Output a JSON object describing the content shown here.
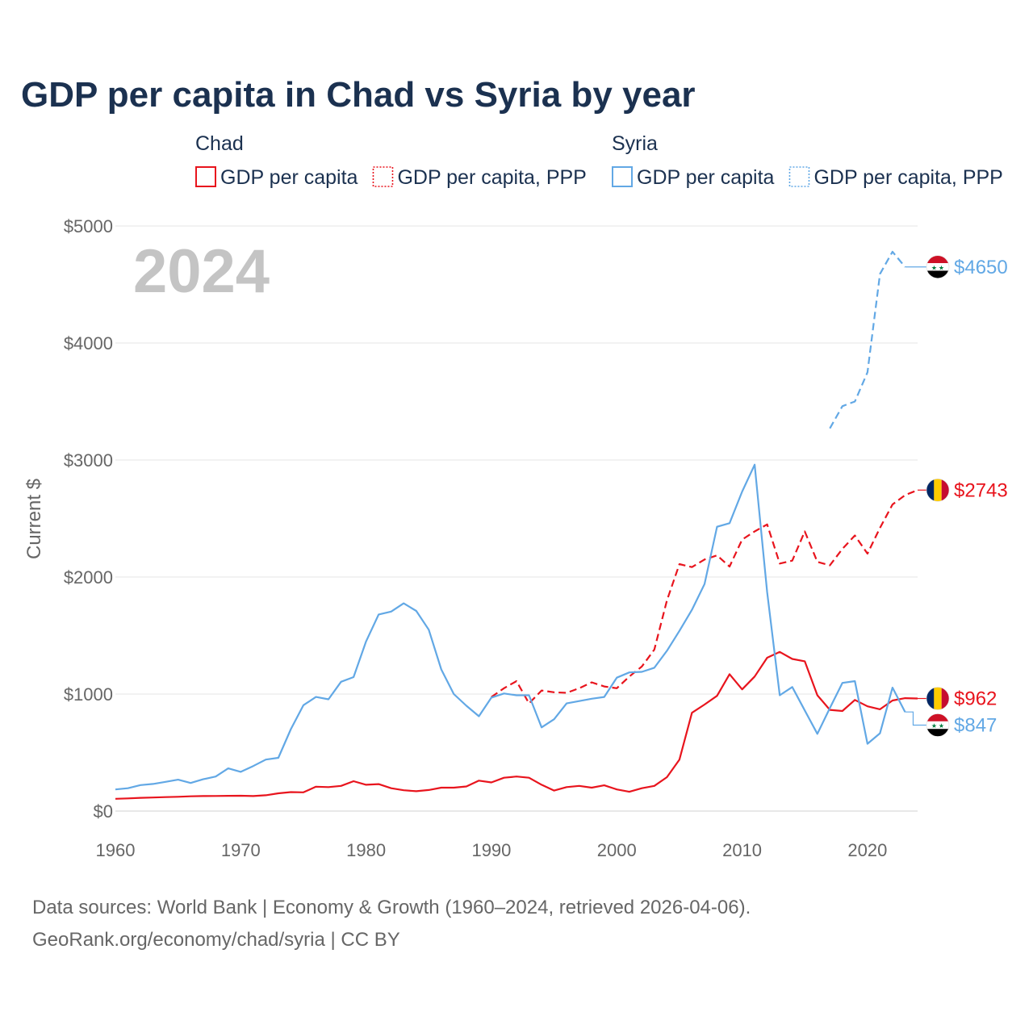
{
  "title": "GDP per capita in Chad vs Syria by year",
  "year_label": "2024",
  "legend": {
    "groups": [
      {
        "name": "Chad",
        "color": "#e8141d",
        "items": [
          {
            "label": "GDP per capita",
            "style": "solid"
          },
          {
            "label": "GDP per capita, PPP",
            "style": "dotted"
          }
        ]
      },
      {
        "name": "Syria",
        "color": "#62a8e5",
        "items": [
          {
            "label": "GDP per capita",
            "style": "solid"
          },
          {
            "label": "GDP per capita, PPP",
            "style": "dotted"
          }
        ]
      }
    ]
  },
  "source_line1": "Data sources: World Bank | Economy & Growth (1960–2024, retrieved 2026-04-06).",
  "source_line2": "GeoRank.org/economy/chad/syria | CC BY",
  "chart_data": {
    "type": "line",
    "title": "GDP per capita in Chad vs Syria by year",
    "xlabel": "",
    "ylabel": "Current $",
    "xlim": [
      1960,
      2024
    ],
    "ylim": [
      0,
      5000
    ],
    "x_ticks": [
      1960,
      1970,
      1980,
      1990,
      2000,
      2010,
      2020
    ],
    "y_ticks": [
      0,
      1000,
      2000,
      3000,
      4000,
      5000
    ],
    "y_tick_labels": [
      "$0",
      "$1000",
      "$2000",
      "$3000",
      "$4000",
      "$5000"
    ],
    "series": [
      {
        "name": "Chad GDP per capita",
        "country": "Chad",
        "color": "#e8141d",
        "dash": "solid",
        "end_label": "$962",
        "flag": "chad",
        "points": [
          [
            1960,
            105
          ],
          [
            1961,
            108
          ],
          [
            1962,
            113
          ],
          [
            1963,
            116
          ],
          [
            1964,
            119
          ],
          [
            1965,
            122
          ],
          [
            1966,
            126
          ],
          [
            1967,
            128
          ],
          [
            1968,
            129
          ],
          [
            1969,
            130
          ],
          [
            1970,
            131
          ],
          [
            1971,
            128
          ],
          [
            1972,
            135
          ],
          [
            1973,
            152
          ],
          [
            1974,
            162
          ],
          [
            1975,
            160
          ],
          [
            1976,
            208
          ],
          [
            1977,
            205
          ],
          [
            1978,
            215
          ],
          [
            1979,
            255
          ],
          [
            1980,
            225
          ],
          [
            1981,
            230
          ],
          [
            1982,
            195
          ],
          [
            1983,
            178
          ],
          [
            1984,
            170
          ],
          [
            1985,
            180
          ],
          [
            1986,
            200
          ],
          [
            1987,
            200
          ],
          [
            1988,
            210
          ],
          [
            1989,
            260
          ],
          [
            1990,
            245
          ],
          [
            1991,
            285
          ],
          [
            1992,
            295
          ],
          [
            1993,
            285
          ],
          [
            1994,
            225
          ],
          [
            1995,
            175
          ],
          [
            1996,
            205
          ],
          [
            1997,
            215
          ],
          [
            1998,
            200
          ],
          [
            1999,
            220
          ],
          [
            2000,
            185
          ],
          [
            2001,
            165
          ],
          [
            2002,
            195
          ],
          [
            2003,
            215
          ],
          [
            2004,
            290
          ],
          [
            2005,
            440
          ],
          [
            2006,
            840
          ],
          [
            2007,
            910
          ],
          [
            2008,
            985
          ],
          [
            2009,
            1170
          ],
          [
            2010,
            1040
          ],
          [
            2011,
            1150
          ],
          [
            2012,
            1310
          ],
          [
            2013,
            1360
          ],
          [
            2014,
            1300
          ],
          [
            2015,
            1280
          ],
          [
            2016,
            990
          ],
          [
            2017,
            865
          ],
          [
            2018,
            855
          ],
          [
            2019,
            950
          ],
          [
            2020,
            895
          ],
          [
            2021,
            870
          ],
          [
            2022,
            945
          ],
          [
            2023,
            965
          ],
          [
            2024,
            962
          ]
        ]
      },
      {
        "name": "Chad GDP per capita, PPP",
        "country": "Chad",
        "color": "#e8141d",
        "dash": "dashed",
        "end_label": "$2743",
        "flag": "chad",
        "points": [
          [
            1990,
            975
          ],
          [
            1991,
            1050
          ],
          [
            1992,
            1110
          ],
          [
            1993,
            920
          ],
          [
            1994,
            1030
          ],
          [
            1995,
            1015
          ],
          [
            1996,
            1010
          ],
          [
            1997,
            1050
          ],
          [
            1998,
            1100
          ],
          [
            1999,
            1065
          ],
          [
            2000,
            1050
          ],
          [
            2001,
            1150
          ],
          [
            2002,
            1235
          ],
          [
            2003,
            1380
          ],
          [
            2004,
            1800
          ],
          [
            2005,
            2110
          ],
          [
            2006,
            2085
          ],
          [
            2007,
            2150
          ],
          [
            2008,
            2185
          ],
          [
            2009,
            2090
          ],
          [
            2010,
            2320
          ],
          [
            2011,
            2390
          ],
          [
            2012,
            2450
          ],
          [
            2013,
            2115
          ],
          [
            2014,
            2140
          ],
          [
            2015,
            2390
          ],
          [
            2016,
            2130
          ],
          [
            2017,
            2100
          ],
          [
            2018,
            2240
          ],
          [
            2019,
            2355
          ],
          [
            2020,
            2200
          ],
          [
            2021,
            2420
          ],
          [
            2022,
            2620
          ],
          [
            2023,
            2700
          ],
          [
            2024,
            2743
          ]
        ]
      },
      {
        "name": "Syria GDP per capita",
        "country": "Syria",
        "color": "#62a8e5",
        "dash": "solid",
        "end_label": "$847",
        "flag": "syria",
        "points": [
          [
            1960,
            185
          ],
          [
            1961,
            195
          ],
          [
            1962,
            222
          ],
          [
            1963,
            232
          ],
          [
            1964,
            250
          ],
          [
            1965,
            268
          ],
          [
            1966,
            240
          ],
          [
            1967,
            272
          ],
          [
            1968,
            295
          ],
          [
            1969,
            365
          ],
          [
            1970,
            335
          ],
          [
            1971,
            385
          ],
          [
            1972,
            440
          ],
          [
            1973,
            455
          ],
          [
            1974,
            700
          ],
          [
            1975,
            905
          ],
          [
            1976,
            975
          ],
          [
            1977,
            955
          ],
          [
            1978,
            1105
          ],
          [
            1979,
            1145
          ],
          [
            1980,
            1450
          ],
          [
            1981,
            1680
          ],
          [
            1982,
            1705
          ],
          [
            1983,
            1775
          ],
          [
            1984,
            1710
          ],
          [
            1985,
            1550
          ],
          [
            1986,
            1210
          ],
          [
            1987,
            1000
          ],
          [
            1988,
            900
          ],
          [
            1989,
            810
          ],
          [
            1990,
            970
          ],
          [
            1991,
            1005
          ],
          [
            1992,
            990
          ],
          [
            1993,
            990
          ],
          [
            1994,
            715
          ],
          [
            1995,
            785
          ],
          [
            1996,
            920
          ],
          [
            1997,
            940
          ],
          [
            1998,
            960
          ],
          [
            1999,
            975
          ],
          [
            2000,
            1140
          ],
          [
            2001,
            1185
          ],
          [
            2002,
            1190
          ],
          [
            2003,
            1225
          ],
          [
            2004,
            1370
          ],
          [
            2005,
            1540
          ],
          [
            2006,
            1720
          ],
          [
            2007,
            1940
          ],
          [
            2008,
            2430
          ],
          [
            2009,
            2460
          ],
          [
            2010,
            2730
          ],
          [
            2011,
            2960
          ],
          [
            2012,
            1870
          ],
          [
            2013,
            990
          ],
          [
            2014,
            1060
          ],
          [
            2015,
            860
          ],
          [
            2016,
            660
          ],
          [
            2017,
            880
          ],
          [
            2018,
            1095
          ],
          [
            2019,
            1110
          ],
          [
            2020,
            575
          ],
          [
            2021,
            665
          ],
          [
            2022,
            1055
          ],
          [
            2023,
            847
          ]
        ]
      },
      {
        "name": "Syria GDP per capita, PPP",
        "country": "Syria",
        "color": "#62a8e5",
        "dash": "dashed",
        "end_label": "$4650",
        "flag": "syria",
        "points": [
          [
            2017,
            3270
          ],
          [
            2018,
            3460
          ],
          [
            2019,
            3500
          ],
          [
            2020,
            3750
          ],
          [
            2021,
            4590
          ],
          [
            2022,
            4780
          ],
          [
            2023,
            4650
          ]
        ]
      }
    ]
  }
}
